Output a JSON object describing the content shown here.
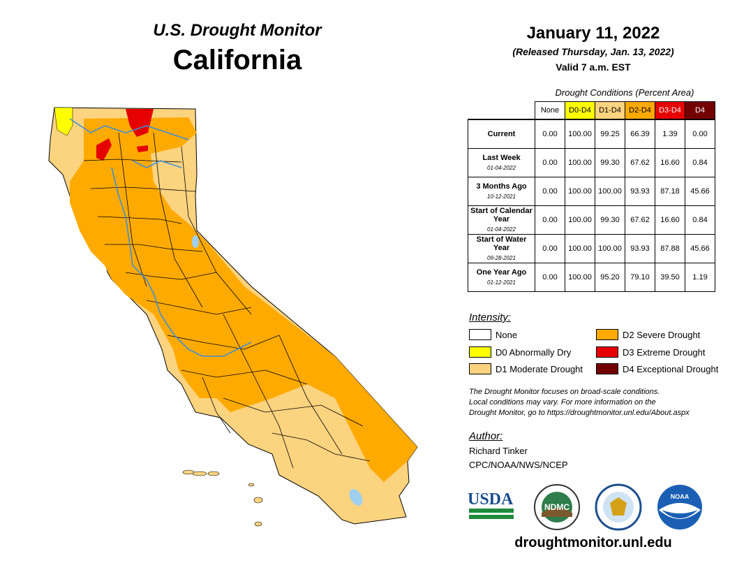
{
  "header": {
    "title": "U.S. Drought Monitor",
    "state": "California"
  },
  "date": {
    "main": "January 11, 2022",
    "released": "(Released Thursday, Jan. 13, 2022)",
    "valid": "Valid 7 a.m. EST"
  },
  "table": {
    "caption": "Drought Conditions (Percent Area)",
    "columns": [
      "None",
      "D0-D4",
      "D1-D4",
      "D2-D4",
      "D3-D4",
      "D4"
    ],
    "rows": [
      {
        "label": "Current",
        "date": "",
        "values": [
          "0.00",
          "100.00",
          "99.25",
          "66.39",
          "1.39",
          "0.00"
        ]
      },
      {
        "label": "Last Week",
        "date": "01-04-2022",
        "values": [
          "0.00",
          "100.00",
          "99.30",
          "67.62",
          "16.60",
          "0.84"
        ]
      },
      {
        "label": "3 Months Ago",
        "date": "10-12-2021",
        "values": [
          "0.00",
          "100.00",
          "100.00",
          "93.93",
          "87.18",
          "45.66"
        ]
      },
      {
        "label": "Start of Calendar Year",
        "date": "01-04-2022",
        "values": [
          "0.00",
          "100.00",
          "99.30",
          "67.62",
          "16.60",
          "0.84"
        ]
      },
      {
        "label": "Start of Water Year",
        "date": "09-28-2021",
        "values": [
          "0.00",
          "100.00",
          "100.00",
          "93.93",
          "87.88",
          "45.66"
        ]
      },
      {
        "label": "One Year Ago",
        "date": "01-12-2021",
        "values": [
          "0.00",
          "100.00",
          "95.20",
          "79.10",
          "39.50",
          "1.19"
        ]
      }
    ]
  },
  "legend": {
    "title": "Intensity:",
    "items": [
      {
        "label": "None",
        "color": "#ffffff"
      },
      {
        "label": "D0 Abnormally Dry",
        "color": "#ffff00"
      },
      {
        "label": "D1 Moderate Drought",
        "color": "#fcd37f"
      },
      {
        "label": "D2 Severe Drought",
        "color": "#ffaa00"
      },
      {
        "label": "D3 Extreme Drought",
        "color": "#e60000"
      },
      {
        "label": "D4 Exceptional Drought",
        "color": "#730000"
      }
    ]
  },
  "note": {
    "line1": "The Drought Monitor focuses on broad-scale conditions.",
    "line2": "Local conditions may vary. For more information on the",
    "line3": "Drought Monitor, go to https://droughtmonitor.unl.edu/About.aspx"
  },
  "author": {
    "title": "Author:",
    "name": "Richard Tinker",
    "org": "CPC/NOAA/NWS/NCEP"
  },
  "logos": {
    "usda": "USDA",
    "ndmc": "NDMC",
    "noaa": "NOAA"
  },
  "url": "droughtmonitor.unl.edu"
}
